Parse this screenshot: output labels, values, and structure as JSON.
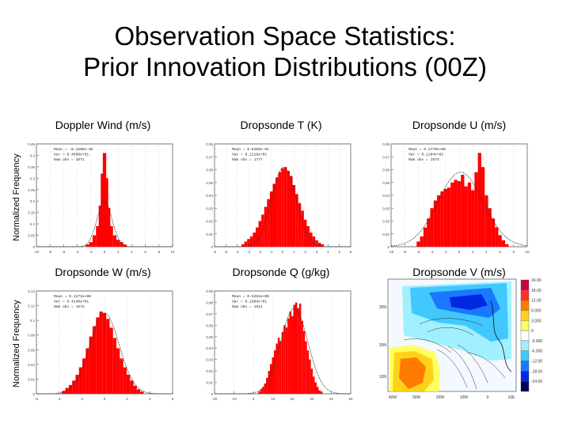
{
  "title_line1": "Observation Space Statistics:",
  "title_line2": "Prior Innovation Distributions (00Z)",
  "ylabel": "Normalized Frequency",
  "colors": {
    "bar": "#ff0000",
    "curve": "#333333",
    "axis": "#555555"
  },
  "chart_data": [
    {
      "type": "bar",
      "title": "Doppler Wind (m/s)",
      "xticks": [
        "-10",
        "-8",
        "-6",
        "-4",
        "-2",
        "0",
        "2",
        "4",
        "6",
        "8",
        "10"
      ],
      "yticks": [
        "0.45",
        "0.4",
        "0.35",
        "0.3",
        "0.25",
        "0.2",
        "0.15",
        "0.1",
        "0.05",
        "0"
      ],
      "xlim": [
        -10,
        10
      ],
      "ylim": [
        0,
        0.45
      ],
      "stats": [
        "Mean = -0.1205e-02",
        "Var = 0.4808e+01",
        "Num obs = 1571"
      ],
      "x": [
        -2.5,
        -2.0,
        -1.5,
        -1.0,
        -0.6,
        -0.3,
        0.0,
        0.3,
        0.6,
        1.0,
        1.5,
        2.0,
        2.5,
        3.0
      ],
      "values": [
        0.01,
        0.02,
        0.05,
        0.09,
        0.18,
        0.32,
        0.41,
        0.3,
        0.17,
        0.09,
        0.05,
        0.03,
        0.02,
        0.01
      ],
      "fit_mean": 0,
      "fit_sd": 1.1,
      "fit_peak": 0.2
    },
    {
      "type": "bar",
      "title": "Dropsonde T (K)",
      "xticks": [
        "-6",
        "-5",
        "-4",
        "-3",
        "-2",
        "-1",
        "0",
        "1",
        "2",
        "3",
        "4",
        "5",
        "6"
      ],
      "yticks": [
        "0.08",
        "0.07",
        "0.06",
        "0.05",
        "0.04",
        "0.03",
        "0.02",
        "0.01",
        "0"
      ],
      "xlim": [
        -6,
        6
      ],
      "ylim": [
        0,
        0.08
      ],
      "stats": [
        "Mean = 0.8205e-01",
        "Var = 0.1116e+01",
        "Num obs = 1777"
      ],
      "x": [
        -3.5,
        -3.25,
        -3.0,
        -2.75,
        -2.5,
        -2.25,
        -2.0,
        -1.75,
        -1.5,
        -1.25,
        -1.0,
        -0.75,
        -0.5,
        -0.25,
        0.0,
        0.25,
        0.5,
        0.75,
        1.0,
        1.25,
        1.5,
        1.75,
        2.0,
        2.25,
        2.5,
        2.75,
        3.0,
        3.25,
        3.5
      ],
      "values": [
        0.002,
        0.004,
        0.006,
        0.008,
        0.011,
        0.015,
        0.02,
        0.025,
        0.031,
        0.037,
        0.043,
        0.049,
        0.054,
        0.058,
        0.061,
        0.062,
        0.059,
        0.055,
        0.048,
        0.041,
        0.034,
        0.028,
        0.021,
        0.016,
        0.011,
        0.008,
        0.005,
        0.003,
        0.002
      ],
      "fit_mean": 0.1,
      "fit_sd": 1.06,
      "fit_peak": 0.062
    },
    {
      "type": "bar",
      "title": "Dropsonde U (m/s)",
      "xticks": [
        "-10",
        "-8",
        "-6",
        "-4",
        "-2",
        "0",
        "2",
        "4",
        "6",
        "8",
        "10"
      ],
      "yticks": [
        "0.08",
        "0.07",
        "0.06",
        "0.05",
        "0.04",
        "0.03",
        "0.02",
        "0.01",
        "0"
      ],
      "xlim": [
        -10,
        10
      ],
      "ylim": [
        0,
        0.08
      ],
      "stats": [
        "Mean = 0.1770e+00",
        "Var = 0.1104e+02",
        "Num obs = 1573"
      ],
      "x": [
        -6.0,
        -5.5,
        -5.0,
        -4.5,
        -4.0,
        -3.5,
        -3.0,
        -2.5,
        -2.0,
        -1.5,
        -1.0,
        -0.5,
        0.0,
        0.5,
        1.0,
        1.5,
        2.0,
        2.5,
        3.0,
        3.5,
        4.0,
        4.5,
        5.0,
        5.5,
        6.0,
        6.5,
        7.0
      ],
      "values": [
        0.004,
        0.008,
        0.015,
        0.022,
        0.03,
        0.036,
        0.04,
        0.043,
        0.045,
        0.046,
        0.05,
        0.052,
        0.051,
        0.056,
        0.047,
        0.05,
        0.044,
        0.058,
        0.073,
        0.062,
        0.04,
        0.03,
        0.022,
        0.015,
        0.009,
        0.005,
        0.002
      ],
      "fit_mean": 0.2,
      "fit_sd": 3.3,
      "fit_peak": 0.058
    },
    {
      "type": "bar",
      "title": "Dropsonde W (m/s)",
      "xticks": [
        "-6",
        "-4",
        "-2",
        "0",
        "2",
        "4",
        "6"
      ],
      "yticks": [
        "0.14",
        "0.12",
        "0.1",
        "0.08",
        "0.06",
        "0.04",
        "0.02",
        "0"
      ],
      "xlim": [
        -6,
        6
      ],
      "ylim": [
        0,
        0.14
      ],
      "stats": [
        "Mean = 0.1271e+00",
        "Var = 0.4140e+01",
        "Num obs = 1573"
      ],
      "x": [
        -3.6,
        -3.3,
        -3.0,
        -2.7,
        -2.4,
        -2.1,
        -1.8,
        -1.5,
        -1.2,
        -0.9,
        -0.6,
        -0.3,
        0.0,
        0.3,
        0.6,
        0.9,
        1.2,
        1.5,
        1.8,
        2.1,
        2.4,
        2.7,
        3.0,
        3.3
      ],
      "values": [
        0.004,
        0.008,
        0.012,
        0.018,
        0.026,
        0.036,
        0.048,
        0.062,
        0.078,
        0.092,
        0.104,
        0.112,
        0.11,
        0.102,
        0.09,
        0.076,
        0.062,
        0.048,
        0.036,
        0.026,
        0.018,
        0.011,
        0.006,
        0.003
      ],
      "fit_mean": 0,
      "fit_sd": 1.3,
      "fit_peak": 0.11
    },
    {
      "type": "bar",
      "title": "Dropsonde Q (g/kg)",
      "xticks": [
        "-20",
        "-10",
        "0",
        "10",
        "20",
        "30",
        "40",
        "50"
      ],
      "yticks": [
        "0.09",
        "0.08",
        "0.07",
        "0.06",
        "0.05",
        "0.04",
        "0.03",
        "0.02",
        "0.01",
        "0"
      ],
      "xlim": [
        -20,
        50
      ],
      "ylim": [
        0,
        0.09
      ],
      "stats": [
        "Mean = 0.5254e+00",
        "Var = 0.1596e+01",
        "Num obs = 1512"
      ],
      "x": [
        3,
        4,
        5,
        6,
        7,
        8,
        9,
        10,
        11,
        12,
        13,
        14,
        15,
        16,
        17,
        18,
        19,
        20,
        21,
        22,
        23,
        24,
        25,
        26,
        27,
        28,
        29,
        30,
        31,
        32,
        33,
        34,
        35
      ],
      "values": [
        0.002,
        0.004,
        0.006,
        0.009,
        0.014,
        0.02,
        0.026,
        0.032,
        0.038,
        0.044,
        0.049,
        0.046,
        0.054,
        0.06,
        0.058,
        0.066,
        0.072,
        0.068,
        0.078,
        0.08,
        0.075,
        0.079,
        0.064,
        0.055,
        0.046,
        0.038,
        0.03,
        0.022,
        0.015,
        0.01,
        0.006,
        0.003,
        0.002
      ],
      "fit_mean": 21,
      "fit_sd": 7,
      "fit_peak": 0.075
    },
    {
      "type": "heatmap",
      "title": "Dropsonde V (m/s)",
      "lat_labels": [
        "30N",
        "20N",
        "10N"
      ],
      "lon_labels": [
        "40W",
        "30W",
        "20W",
        "10W",
        "0",
        "10E"
      ],
      "colorbar": [
        {
          "label": "24.00",
          "color": "#c8003c"
        },
        {
          "label": "18.00",
          "color": "#ff3030"
        },
        {
          "label": "12.00",
          "color": "#ff7a00"
        },
        {
          "label": "6.000",
          "color": "#ffd21a"
        },
        {
          "label": "3.000",
          "color": "#ffff60"
        },
        {
          "label": "0",
          "color": "#ffffff"
        },
        {
          "label": "-3.000",
          "color": "#a0f0ff"
        },
        {
          "label": "-6.000",
          "color": "#40c8ff"
        },
        {
          "label": "-12.00",
          "color": "#1a78ff"
        },
        {
          "label": "-18.00",
          "color": "#0028e0"
        },
        {
          "label": "-24.00",
          "color": "#00005a"
        }
      ]
    }
  ]
}
